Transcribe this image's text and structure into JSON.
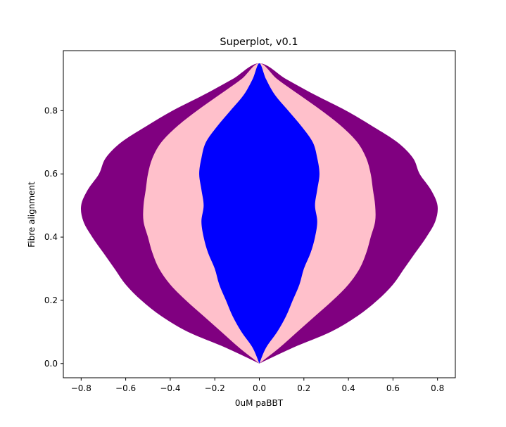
{
  "chart_data": {
    "type": "violin",
    "title": "Superplot, v0.1",
    "xlabel": "0uM paBBT",
    "ylabel": "Fibre alignment",
    "xlim": [
      -0.88,
      0.88
    ],
    "ylim": [
      -0.045,
      0.99
    ],
    "x_ticks": [
      -0.8,
      -0.6,
      -0.4,
      -0.2,
      0.0,
      0.2,
      0.4,
      0.6,
      0.8
    ],
    "x_tick_labels": [
      "−0.8",
      "−0.6",
      "−0.4",
      "−0.2",
      "0.0",
      "0.2",
      "0.4",
      "0.6",
      "0.8"
    ],
    "y_ticks": [
      0.0,
      0.2,
      0.4,
      0.6,
      0.8
    ],
    "y_tick_labels": [
      "0.0",
      "0.2",
      "0.4",
      "0.6",
      "0.8"
    ],
    "grid": false,
    "legend": "none",
    "stacked_symmetric_profiles": true,
    "series": [
      {
        "color": "#800080",
        "y": [
          0.0,
          0.05,
          0.1,
          0.15,
          0.2,
          0.25,
          0.3,
          0.35,
          0.4,
          0.45,
          0.5,
          0.55,
          0.6,
          0.65,
          0.7,
          0.75,
          0.8,
          0.85,
          0.9,
          0.95
        ],
        "half_width": [
          0.0,
          0.15,
          0.32,
          0.44,
          0.53,
          0.6,
          0.65,
          0.7,
          0.75,
          0.79,
          0.8,
          0.77,
          0.72,
          0.69,
          0.62,
          0.51,
          0.39,
          0.25,
          0.12,
          0.0
        ]
      },
      {
        "color": "#ffc0cb",
        "y": [
          0.0,
          0.05,
          0.1,
          0.15,
          0.2,
          0.25,
          0.3,
          0.35,
          0.4,
          0.45,
          0.5,
          0.55,
          0.6,
          0.65,
          0.7,
          0.75,
          0.8,
          0.85,
          0.9,
          0.95
        ],
        "half_width": [
          0.0,
          0.09,
          0.17,
          0.25,
          0.33,
          0.4,
          0.45,
          0.48,
          0.5,
          0.52,
          0.52,
          0.51,
          0.5,
          0.48,
          0.44,
          0.37,
          0.28,
          0.18,
          0.08,
          0.0
        ]
      },
      {
        "color": "#0000ff",
        "y": [
          0.0,
          0.05,
          0.1,
          0.15,
          0.2,
          0.25,
          0.3,
          0.35,
          0.4,
          0.45,
          0.5,
          0.55,
          0.6,
          0.65,
          0.7,
          0.75,
          0.8,
          0.85,
          0.9,
          0.95
        ],
        "half_width": [
          0.0,
          0.03,
          0.08,
          0.12,
          0.15,
          0.18,
          0.2,
          0.23,
          0.25,
          0.26,
          0.25,
          0.26,
          0.27,
          0.26,
          0.24,
          0.19,
          0.13,
          0.07,
          0.03,
          0.0
        ]
      }
    ]
  }
}
